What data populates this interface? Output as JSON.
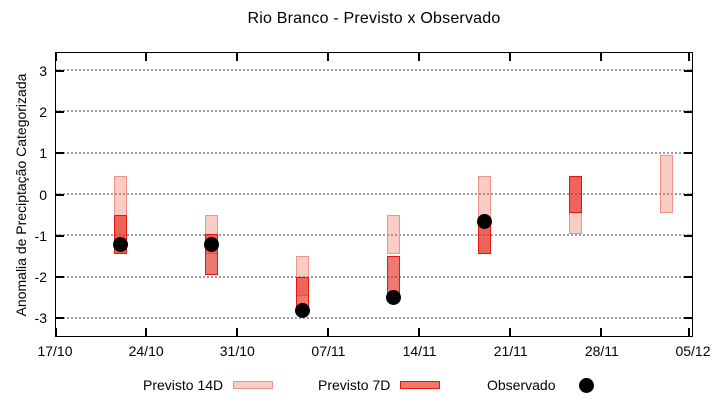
{
  "chart_data": {
    "type": "range_bar_with_points",
    "title": "Rio Branco - Previsto x Observado",
    "ylabel": "Anomalia de Preciptação Categorizada",
    "xlabel": "",
    "ylim": [
      -3.45,
      3.45
    ],
    "y_ticks": [
      3,
      2,
      1,
      0,
      -1,
      -2,
      -3
    ],
    "x_tick_labels": [
      "17/10",
      "24/10",
      "31/10",
      "07/11",
      "14/11",
      "21/11",
      "28/11",
      "05/12"
    ],
    "x_tick_days": [
      0,
      7,
      14,
      21,
      28,
      35,
      42,
      49
    ],
    "grid": "horizontal-dotted",
    "legend_position": "bottom-outside",
    "series_names": {
      "p14": "Previsto 14D",
      "p7": "Previsto 7D",
      "obs": "Observado"
    },
    "clusters": [
      {
        "date": "22/10",
        "day": 5,
        "p14": [
          0.45,
          -1.45
        ],
        "p7": [
          -0.5,
          -1.45
        ],
        "obs": -1.2
      },
      {
        "date": "29/10",
        "day": 12,
        "p14": [
          -0.5,
          -1.45
        ],
        "p7": [
          -0.95,
          -1.95
        ],
        "obs": -1.2
      },
      {
        "date": "05/11",
        "day": 19,
        "p14": [
          -1.5,
          -2.45
        ],
        "p7": [
          -2.0,
          -2.9
        ],
        "obs": -2.8
      },
      {
        "date": "12/11",
        "day": 26,
        "p14": [
          -0.5,
          -1.45
        ],
        "p7": [
          -1.5,
          -2.45
        ],
        "obs": -2.5
      },
      {
        "date": "19/11",
        "day": 33,
        "p14": [
          0.45,
          -1.45
        ],
        "p7": [
          -0.55,
          -1.45
        ],
        "obs": -0.65
      },
      {
        "date": "26/11",
        "day": 40,
        "p14": [
          0.45,
          -0.95
        ],
        "p7": [
          0.45,
          -0.45
        ],
        "obs": null
      },
      {
        "date": "03/12",
        "day": 47,
        "p14": [
          0.95,
          -0.45
        ],
        "p7": null,
        "obs": null
      }
    ],
    "colors": {
      "p14_fill": "rgba(240,110,90,0.35)",
      "p14_border": "#f09488",
      "p7_fill": "rgba(230,30,20,0.60)",
      "p7_border": "#e3170d",
      "p7_legend_fill": "#f3766b",
      "p14_legend_fill": "#f9cdc6",
      "obs_fill": "#000000",
      "grid": "#9c9c9c",
      "axis": "#000000"
    }
  },
  "legend": {
    "p14_label": "Previsto 14D",
    "p7_label": "Previsto 7D",
    "obs_label": "Observado"
  }
}
